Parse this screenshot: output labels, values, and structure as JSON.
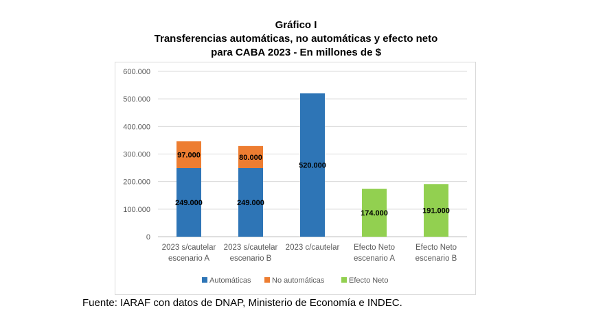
{
  "title_lines": [
    "Gráfico I",
    "Transferencias automáticas, no automáticas y efecto neto",
    "para CABA 2023 - En millones de $"
  ],
  "source": "Fuente: IARAF con datos de DNAP, Ministerio de Economía e INDEC.",
  "colors": {
    "automaticas": "#2e75b6",
    "no_automaticas": "#ed7d31",
    "efecto_neto": "#92d050",
    "grid": "#d9d9d9"
  },
  "chart_data": {
    "type": "bar",
    "stacked": true,
    "title": "Gráfico I — Transferencias automáticas, no automáticas y efecto neto para CABA 2023 - En millones de $",
    "categories": [
      [
        "2023 s/cautelar",
        "escenario A"
      ],
      [
        "2023 s/cautelar",
        "escenario B"
      ],
      [
        "2023 c/cautelar"
      ],
      [
        "Efecto Neto",
        "escenario A"
      ],
      [
        "Efecto Neto",
        "escenario B"
      ]
    ],
    "series": [
      {
        "name": "Automáticas",
        "values": [
          249000,
          249000,
          520000,
          null,
          null
        ]
      },
      {
        "name": "No automáticas",
        "values": [
          97000,
          80000,
          null,
          null,
          null
        ]
      },
      {
        "name": "Efecto Neto",
        "values": [
          null,
          null,
          null,
          174000,
          191000
        ]
      }
    ],
    "data_labels": [
      [
        "249.000",
        "249.000",
        "520.000",
        null,
        null
      ],
      [
        "97.000",
        "80.000",
        null,
        null,
        null
      ],
      [
        null,
        null,
        null,
        "174.000",
        "191.000"
      ]
    ],
    "yticks": [
      "0",
      "100.000",
      "200.000",
      "300.000",
      "400.000",
      "500.000",
      "600.000"
    ],
    "ylim": [
      0,
      600000
    ],
    "grid": true,
    "legend_position": "bottom"
  }
}
